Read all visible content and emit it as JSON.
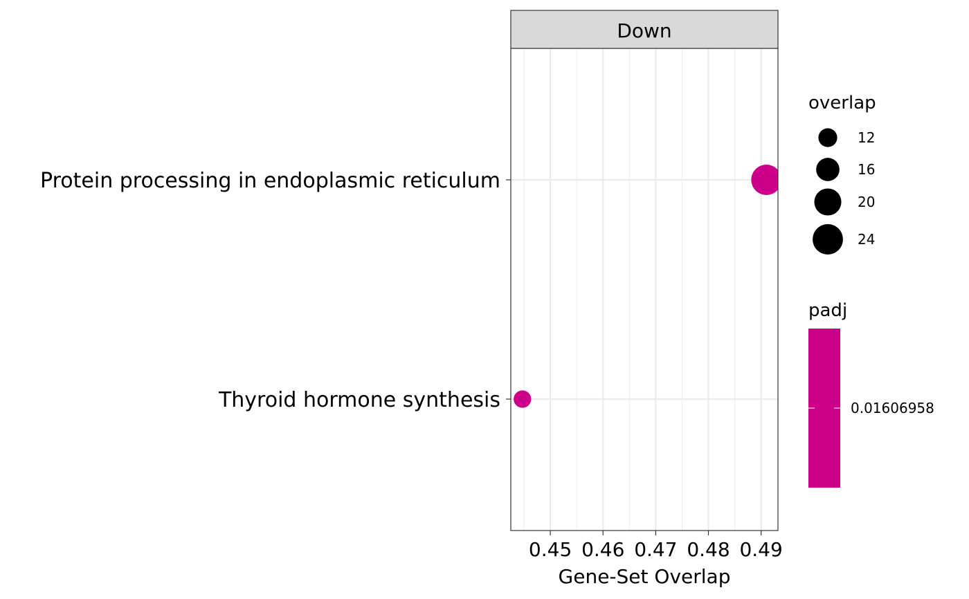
{
  "chart_data": {
    "type": "scatter",
    "facet_label": "Down",
    "xlabel": "Gene-Set Overlap",
    "ylabel": "",
    "xlim": [
      0.4425,
      0.4932
    ],
    "x_ticks": [
      0.45,
      0.46,
      0.47,
      0.48,
      0.49
    ],
    "x_tick_labels": [
      "0.45",
      "0.46",
      "0.47",
      "0.48",
      "0.49"
    ],
    "categories": [
      "Protein processing in endoplasmic reticulum",
      "Thyroid hormone synthesis"
    ],
    "points": [
      {
        "category": "Protein processing in endoplasmic reticulum",
        "x": 0.491,
        "overlap": 24,
        "padj": 0.01606958
      },
      {
        "category": "Thyroid hormone synthesis",
        "x": 0.4447,
        "overlap": 11,
        "padj": 0.01606958
      }
    ],
    "grid": true,
    "point_color": "#CC0088",
    "size_legend": {
      "title": "overlap",
      "values": [
        12,
        16,
        20,
        24
      ],
      "labels": [
        "12",
        "16",
        "20",
        "24"
      ]
    },
    "color_legend": {
      "title": "padj",
      "labels": [
        "0.01606958"
      ],
      "color": "#CC0088"
    },
    "legend_position": "right"
  }
}
